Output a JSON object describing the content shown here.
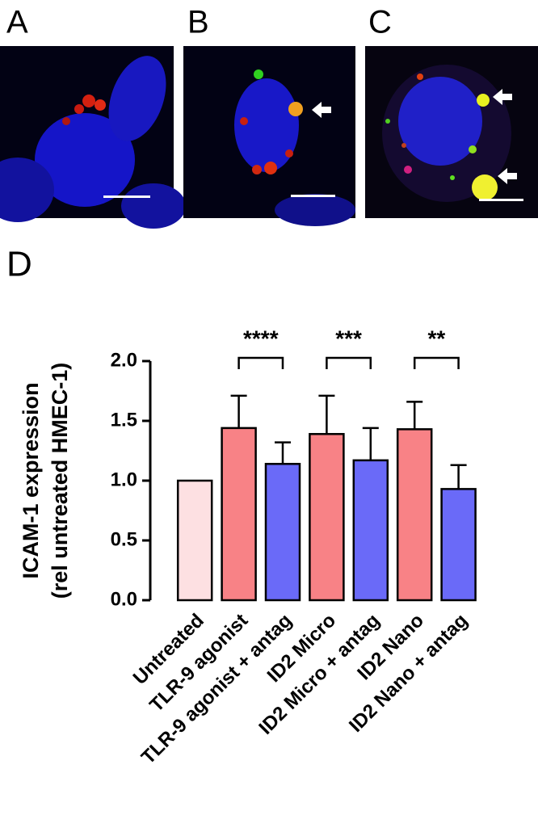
{
  "panel_labels": [
    "A",
    "B",
    "C",
    "D"
  ],
  "chart_data": {
    "type": "bar",
    "ylabel": [
      "ICAM-1 expression",
      "(rel untreated HMEC-1)"
    ],
    "categories": [
      "Untreated",
      "TLR-9 agonist",
      "TLR-9 agonist + antag",
      "ID2 Micro",
      "ID2 Micro + antag",
      "ID2 Nano",
      "ID2 Nano + antag"
    ],
    "values": [
      1.0,
      1.44,
      1.14,
      1.39,
      1.17,
      1.43,
      0.93
    ],
    "errors": [
      null,
      0.27,
      0.18,
      0.32,
      0.27,
      0.23,
      0.2
    ],
    "colors": [
      "#fde0e2",
      "#f88286",
      "#6a6af8",
      "#f88286",
      "#6a6af8",
      "#f88286",
      "#6a6af8"
    ],
    "ylim": [
      0,
      2.0
    ],
    "yticks": [
      {
        "value": 0,
        "label": "0.0"
      },
      {
        "value": 0.5,
        "label": "0.5"
      },
      {
        "value": 1,
        "label": "1.0"
      },
      {
        "value": 1.5,
        "label": "1.5"
      },
      {
        "value": 2,
        "label": "2.0"
      }
    ],
    "significance": [
      {
        "between": [
          "TLR-9 agonist",
          "TLR-9 agonist + antag"
        ],
        "label": "****"
      },
      {
        "between": [
          "ID2 Micro",
          "ID2 Micro + antag"
        ],
        "label": "***"
      },
      {
        "between": [
          "ID2 Nano",
          "ID2 Nano + antag"
        ],
        "label": "**"
      }
    ]
  }
}
